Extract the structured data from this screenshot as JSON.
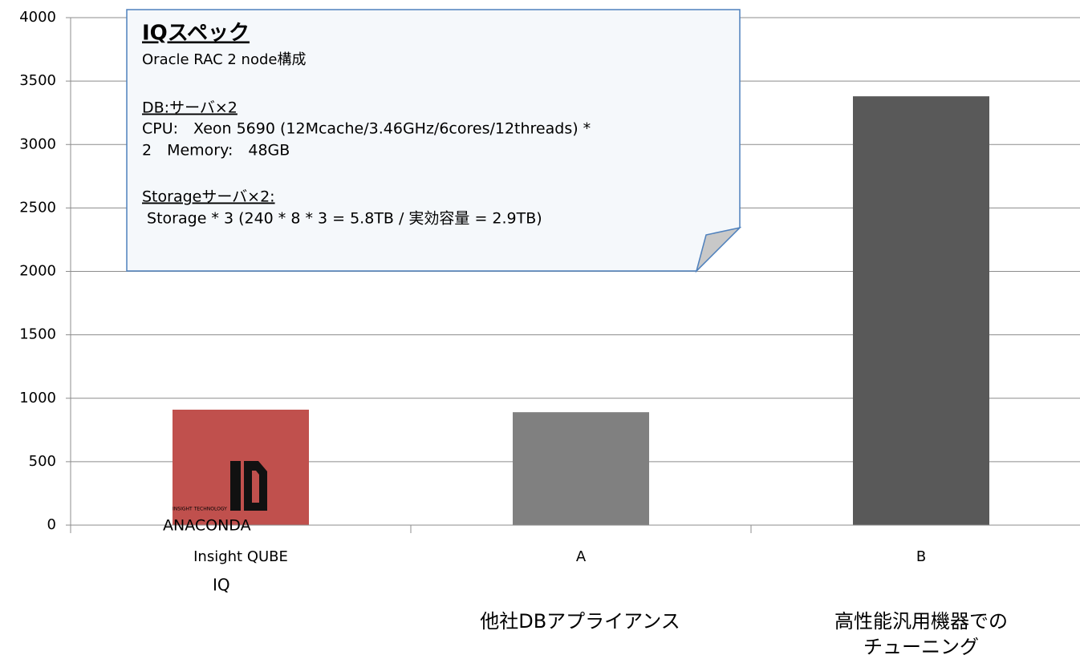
{
  "chart_data": {
    "type": "bar",
    "categories": [
      "Insight QUBE",
      "A",
      "B"
    ],
    "group_labels": [
      [
        "IQ"
      ],
      [
        "他社DBアプライアンス"
      ],
      [
        "高性能汎用機器での",
        "チューニング"
      ]
    ],
    "values": [
      910,
      890,
      3380
    ],
    "colors": [
      "#c0504d",
      "#808080",
      "#595959"
    ],
    "ylim": [
      0,
      4000
    ],
    "yticks": [
      0,
      500,
      1000,
      1500,
      2000,
      2500,
      3000,
      3500,
      4000
    ],
    "grid": true,
    "logo": {
      "small": "INSIGHT TECHNOLOGY",
      "name": "ANACONDA"
    },
    "callout": {
      "title": "IQスペック",
      "lines": [
        "Oracle RAC 2 node構成",
        "DB:サーバ×2",
        "CPU:　Xeon 5690 (12Mcache/3.46GHz/6cores/12threads) *",
        "2　Memory:　48GB",
        "Storageサーバ×2:",
        " Storage * 3 (240 * 8 * 3 = 5.8TB / 実効容量 = 2.9TB)"
      ]
    }
  }
}
